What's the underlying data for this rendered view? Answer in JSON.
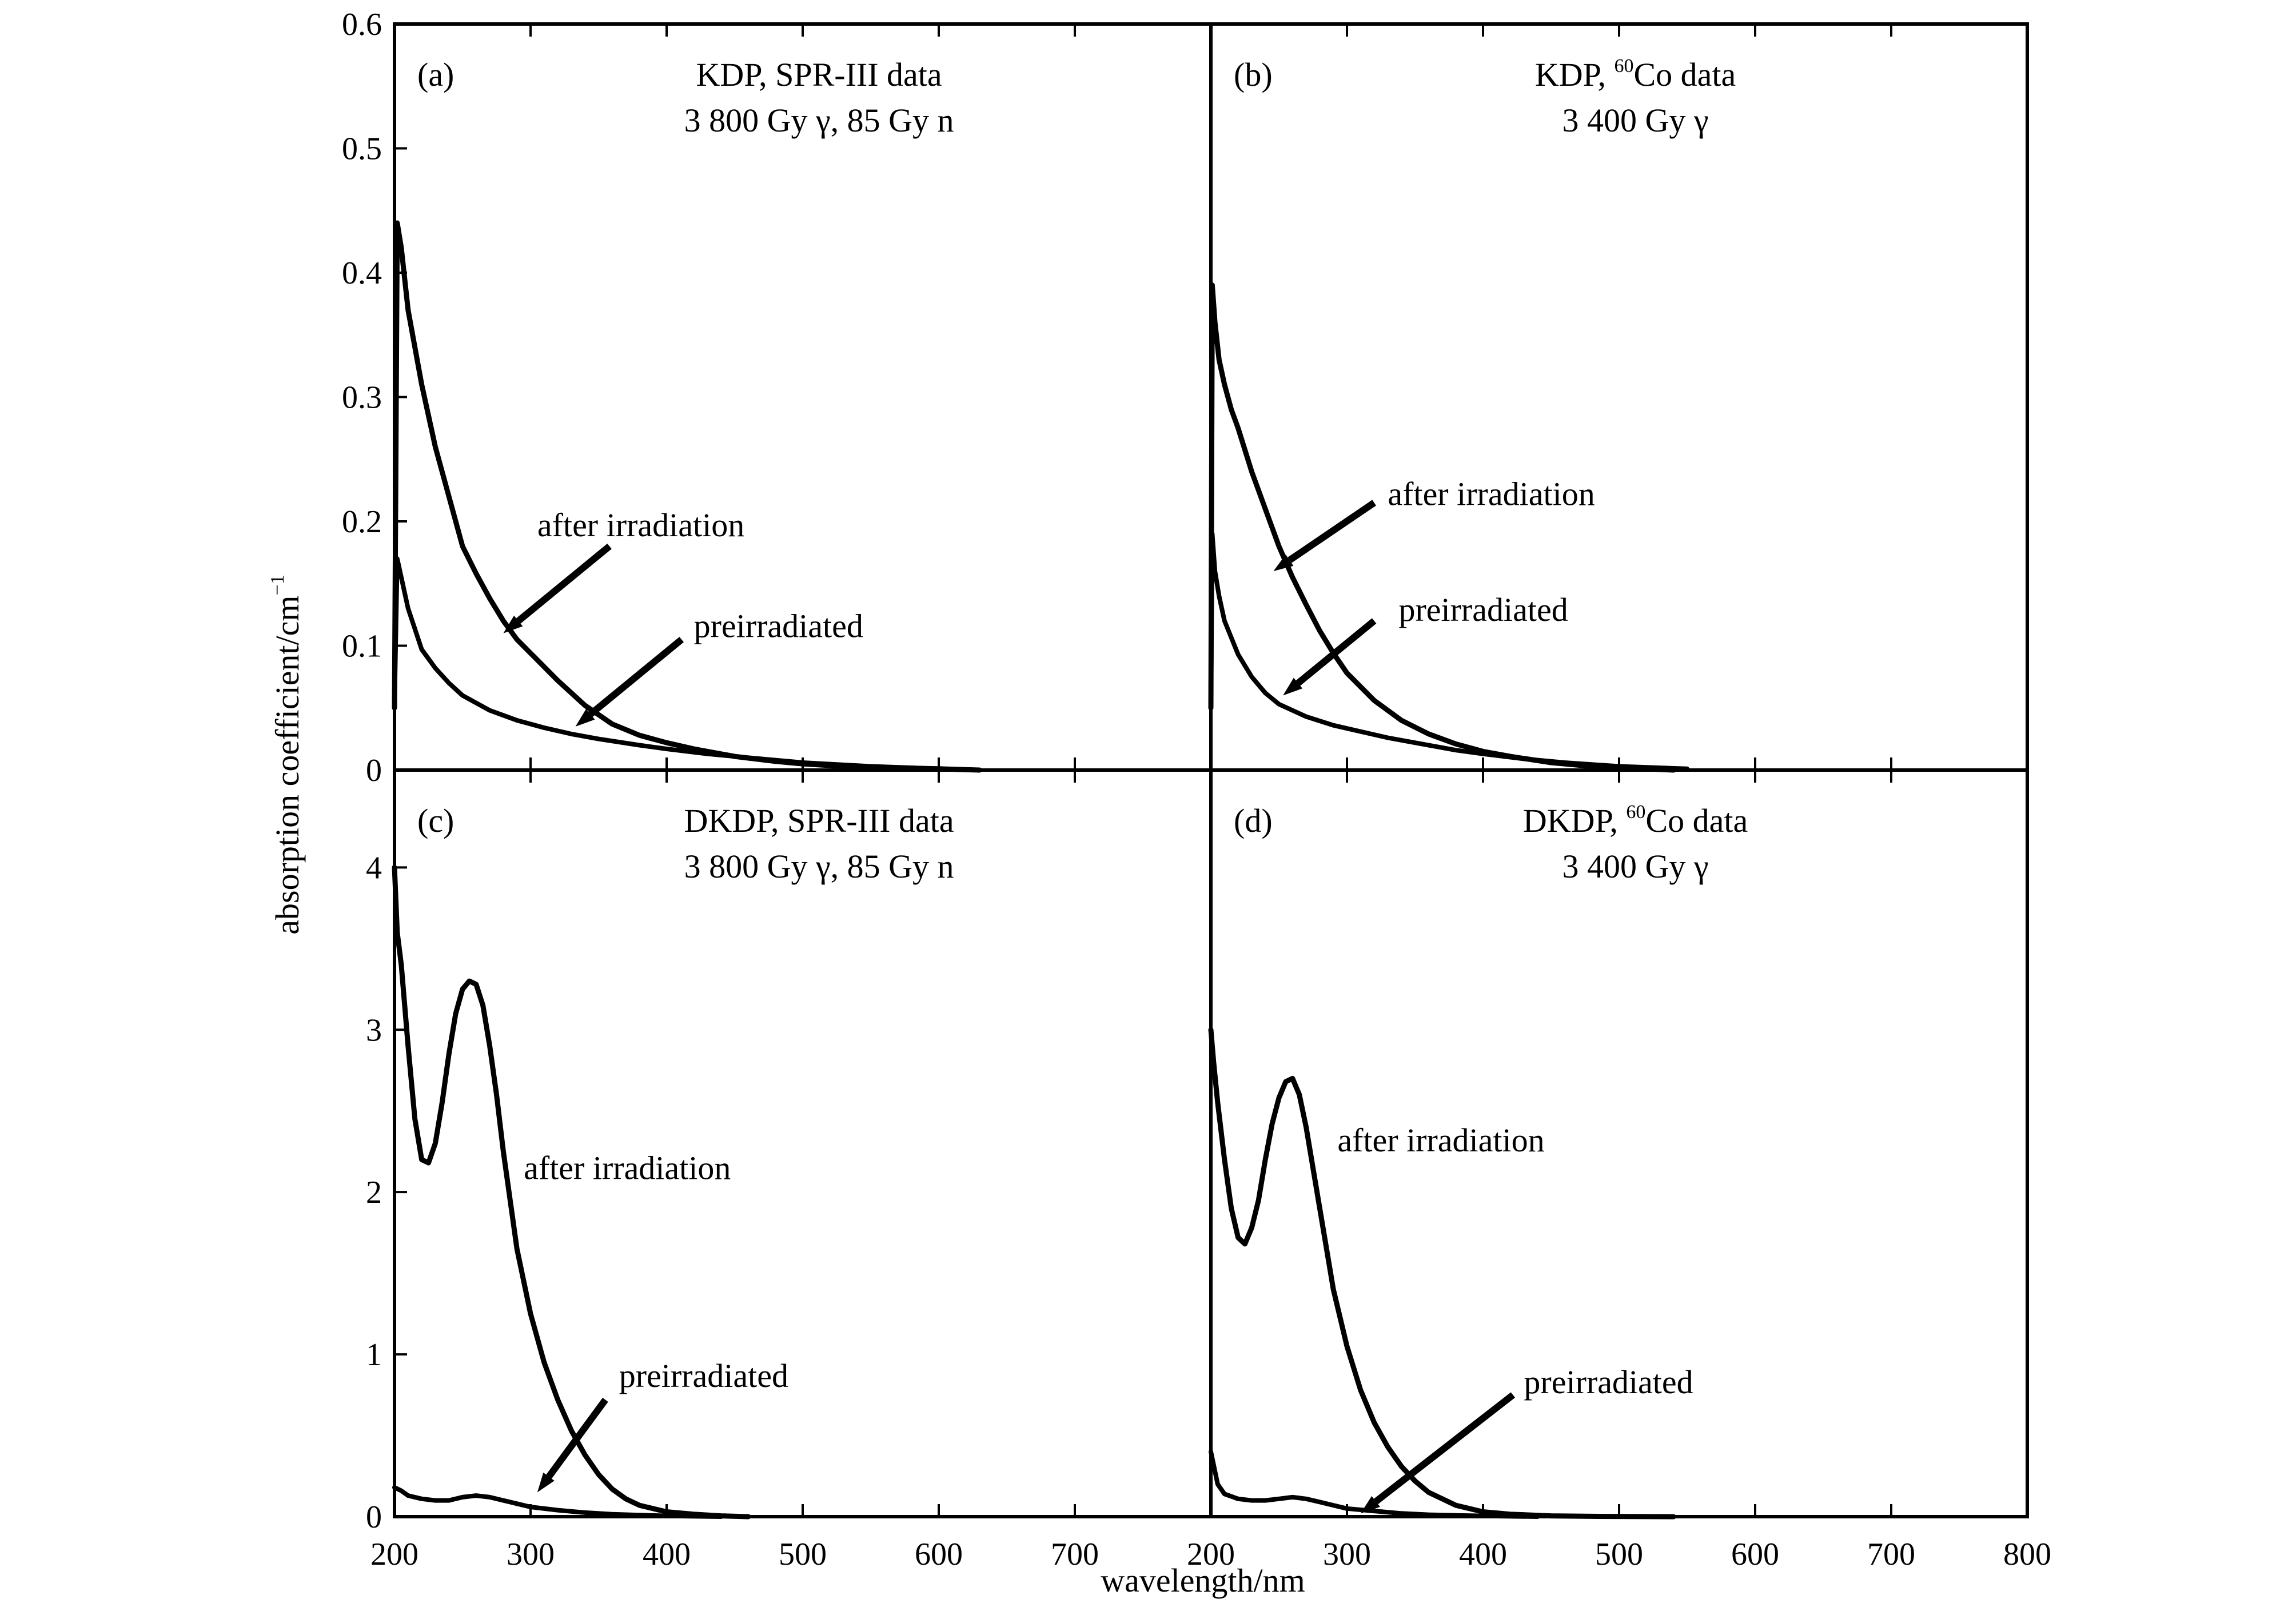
{
  "figure": {
    "ylabel": "absorption coefficient/cm",
    "ylabel_sup": "−1",
    "xlabel": "wavelength/nm"
  },
  "chart_data": [
    {
      "type": "line",
      "panel": "(a)",
      "title_lines": [
        [
          {
            "t": "KDP, SPR-III data"
          }
        ],
        [
          {
            "t": "3 800 Gy γ, 85 Gy n"
          }
        ]
      ],
      "xlim": [
        200,
        800
      ],
      "ylim": [
        0,
        0.6
      ],
      "yticks": [
        {
          "v": 0,
          "label": "0"
        },
        {
          "v": 0.1,
          "label": "0.1"
        },
        {
          "v": 0.2,
          "label": "0.2"
        },
        {
          "v": 0.3,
          "label": "0.3"
        },
        {
          "v": 0.4,
          "label": "0.4"
        },
        {
          "v": 0.5,
          "label": "0.5"
        },
        {
          "v": 0.6,
          "label": "0.6"
        }
      ],
      "xticks": [
        {
          "v": 200,
          "label": "200"
        },
        {
          "v": 300,
          "label": "300"
        },
        {
          "v": 400,
          "label": "400"
        },
        {
          "v": 500,
          "label": "500"
        },
        {
          "v": 600,
          "label": "600"
        },
        {
          "v": 700,
          "label": "700"
        },
        {
          "v": 800,
          "label": ""
        }
      ],
      "series": [
        {
          "name": "after irradiation",
          "x": [
            200,
            202,
            205,
            210,
            215,
            220,
            230,
            240,
            250,
            260,
            270,
            280,
            290,
            300,
            320,
            340,
            360,
            380,
            400,
            420,
            450,
            480,
            500,
            530,
            560,
            600,
            630
          ],
          "y": [
            0.05,
            0.44,
            0.42,
            0.37,
            0.34,
            0.31,
            0.26,
            0.22,
            0.18,
            0.158,
            0.138,
            0.12,
            0.105,
            0.094,
            0.072,
            0.052,
            0.037,
            0.028,
            0.022,
            0.017,
            0.011,
            0.007,
            0.005,
            0.003,
            0.002,
            0.001,
            0.0
          ]
        },
        {
          "name": "preirradiated",
          "x": [
            200,
            202,
            205,
            210,
            220,
            230,
            240,
            250,
            270,
            290,
            310,
            330,
            350,
            380,
            400,
            430,
            460,
            500,
            550,
            600
          ],
          "y": [
            0.05,
            0.17,
            0.155,
            0.13,
            0.097,
            0.082,
            0.07,
            0.06,
            0.048,
            0.04,
            0.034,
            0.029,
            0.025,
            0.02,
            0.017,
            0.013,
            0.01,
            0.006,
            0.003,
            0.001
          ]
        }
      ],
      "annotations": [
        {
          "text": "after irradiation",
          "at": [
            305,
            0.188
          ],
          "arrow_from": [
            358,
            0.18
          ],
          "arrow_to": [
            280,
            0.11
          ]
        },
        {
          "text": "preirradiated",
          "at": [
            420,
            0.107
          ],
          "arrow_from": [
            411,
            0.105
          ],
          "arrow_to": [
            333,
            0.035
          ]
        }
      ]
    },
    {
      "type": "line",
      "panel": "(b)",
      "title_lines": [
        [
          {
            "t": "KDP, "
          },
          {
            "t": "60",
            "sup": true
          },
          {
            "t": "Co data"
          }
        ],
        [
          {
            "t": "3 400 Gy γ"
          }
        ]
      ],
      "xlim": [
        200,
        800
      ],
      "ylim": [
        0,
        0.6
      ],
      "xticks": [
        {
          "v": 200,
          "label": "200"
        },
        {
          "v": 300,
          "label": "300"
        },
        {
          "v": 400,
          "label": "400"
        },
        {
          "v": 500,
          "label": "500"
        },
        {
          "v": 600,
          "label": "600"
        },
        {
          "v": 700,
          "label": "700"
        },
        {
          "v": 800,
          "label": "800"
        }
      ],
      "series": [
        {
          "name": "after irradiation",
          "x": [
            200,
            201,
            203,
            206,
            210,
            215,
            220,
            230,
            240,
            250,
            260,
            270,
            280,
            290,
            300,
            320,
            340,
            360,
            380,
            400,
            420,
            450,
            480,
            500,
            540
          ],
          "y": [
            0.05,
            0.39,
            0.36,
            0.33,
            0.31,
            0.29,
            0.275,
            0.24,
            0.21,
            0.18,
            0.155,
            0.133,
            0.112,
            0.094,
            0.078,
            0.056,
            0.04,
            0.029,
            0.021,
            0.015,
            0.011,
            0.006,
            0.003,
            0.002,
            0.0
          ]
        },
        {
          "name": "preirradiated",
          "x": [
            200,
            201,
            203,
            206,
            210,
            220,
            230,
            240,
            250,
            270,
            290,
            310,
            330,
            350,
            380,
            400,
            430,
            460,
            500,
            550
          ],
          "y": [
            0.05,
            0.19,
            0.16,
            0.14,
            0.12,
            0.093,
            0.075,
            0.062,
            0.053,
            0.043,
            0.036,
            0.031,
            0.026,
            0.022,
            0.016,
            0.013,
            0.009,
            0.006,
            0.003,
            0.001
          ]
        }
      ],
      "annotations": [
        {
          "text": "after irradiation",
          "at": [
            330,
            0.213
          ],
          "arrow_from": [
            320,
            0.215
          ],
          "arrow_to": [
            246,
            0.16
          ]
        },
        {
          "text": "preirradiated",
          "at": [
            338,
            0.12
          ],
          "arrow_from": [
            320,
            0.12
          ],
          "arrow_to": [
            253,
            0.06
          ]
        }
      ]
    },
    {
      "type": "line",
      "panel": "(c)",
      "title_lines": [
        [
          {
            "t": "DKDP, SPR-III data"
          }
        ],
        [
          {
            "t": "3 800 Gy γ, 85 Gy n"
          }
        ]
      ],
      "xlim": [
        200,
        800
      ],
      "ylim": [
        0,
        4.6
      ],
      "yticks": [
        {
          "v": 0,
          "label": "0"
        },
        {
          "v": 1,
          "label": "1"
        },
        {
          "v": 2,
          "label": "2"
        },
        {
          "v": 3,
          "label": "3"
        },
        {
          "v": 4,
          "label": "4"
        }
      ],
      "xticks": [],
      "series": [
        {
          "name": "after irradiation",
          "x": [
            200,
            202,
            205,
            210,
            215,
            220,
            225,
            230,
            235,
            240,
            245,
            250,
            255,
            260,
            265,
            270,
            275,
            280,
            285,
            290,
            300,
            310,
            320,
            330,
            340,
            350,
            360,
            370,
            380,
            400,
            420,
            440,
            460
          ],
          "y": [
            4.0,
            3.6,
            3.4,
            2.9,
            2.45,
            2.2,
            2.18,
            2.3,
            2.55,
            2.85,
            3.1,
            3.25,
            3.3,
            3.28,
            3.15,
            2.9,
            2.6,
            2.25,
            1.95,
            1.65,
            1.25,
            0.95,
            0.72,
            0.53,
            0.38,
            0.26,
            0.17,
            0.11,
            0.07,
            0.03,
            0.015,
            0.005,
            0.0
          ]
        },
        {
          "name": "preirradiated",
          "x": [
            200,
            205,
            210,
            220,
            230,
            240,
            250,
            260,
            270,
            280,
            290,
            300,
            320,
            340,
            360,
            380,
            400,
            440
          ],
          "y": [
            0.18,
            0.16,
            0.13,
            0.11,
            0.1,
            0.1,
            0.12,
            0.13,
            0.12,
            0.1,
            0.08,
            0.06,
            0.04,
            0.025,
            0.015,
            0.01,
            0.005,
            0.0
          ]
        }
      ],
      "annotations": [
        {
          "text": "after irradiation",
          "at": [
            295,
            2.08
          ],
          "arrow_from": null,
          "arrow_to": null
        },
        {
          "text": "preirradiated",
          "at": [
            365,
            0.8
          ],
          "arrow_from": [
            355,
            0.72
          ],
          "arrow_to": [
            305,
            0.15
          ]
        }
      ]
    },
    {
      "type": "line",
      "panel": "(d)",
      "title_lines": [
        [
          {
            "t": "DKDP, "
          },
          {
            "t": "60",
            "sup": true
          },
          {
            "t": "Co data"
          }
        ],
        [
          {
            "t": "3 400 Gy γ"
          }
        ]
      ],
      "xlim": [
        200,
        800
      ],
      "ylim": [
        0,
        4.6
      ],
      "xticks": [],
      "series": [
        {
          "name": "after irradiation",
          "x": [
            200,
            202,
            205,
            210,
            215,
            220,
            225,
            230,
            235,
            240,
            245,
            250,
            255,
            260,
            265,
            270,
            275,
            280,
            285,
            290,
            300,
            310,
            320,
            330,
            340,
            350,
            360,
            380,
            400,
            420,
            450,
            480,
            540
          ],
          "y": [
            3.0,
            2.8,
            2.55,
            2.2,
            1.9,
            1.72,
            1.68,
            1.78,
            1.95,
            2.2,
            2.42,
            2.58,
            2.68,
            2.7,
            2.6,
            2.4,
            2.15,
            1.9,
            1.65,
            1.4,
            1.05,
            0.78,
            0.58,
            0.43,
            0.31,
            0.22,
            0.15,
            0.07,
            0.03,
            0.015,
            0.005,
            0.002,
            0.0
          ]
        },
        {
          "name": "preirradiated",
          "x": [
            200,
            205,
            210,
            220,
            230,
            240,
            250,
            260,
            270,
            280,
            290,
            300,
            320,
            340,
            360,
            380,
            400,
            440
          ],
          "y": [
            0.4,
            0.2,
            0.14,
            0.11,
            0.1,
            0.1,
            0.11,
            0.12,
            0.11,
            0.09,
            0.07,
            0.05,
            0.035,
            0.02,
            0.012,
            0.008,
            0.005,
            0.0
          ]
        }
      ],
      "annotations": [
        {
          "text": "after irradiation",
          "at": [
            293,
            2.25
          ],
          "arrow_from": null,
          "arrow_to": null
        },
        {
          "text": "preirradiated",
          "at": [
            430,
            0.76
          ],
          "arrow_from": [
            422,
            0.75
          ],
          "arrow_to": [
            310,
            0.02
          ]
        }
      ]
    }
  ]
}
